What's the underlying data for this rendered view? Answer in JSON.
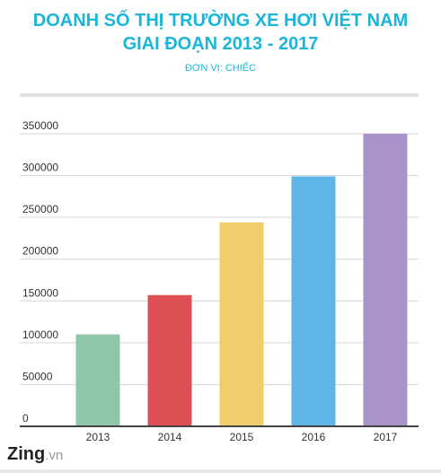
{
  "header": {
    "title_line1": "DOANH SỐ THỊ TRƯỜNG XE HƠI VIỆT NAM",
    "title_line2": "GIAI ĐOẠN 2013 - 2017",
    "unit": "ĐƠN VỊ: CHIẾC"
  },
  "logo": {
    "main": "Zing",
    "suffix": ".vn"
  },
  "colors": {
    "title": "#1ab6d9",
    "bars": [
      "#8fc5a8",
      "#dc5055",
      "#f0cd6c",
      "#5fb5e6",
      "#a892c7"
    ]
  },
  "chart_data": {
    "type": "bar",
    "title": "DOANH SỐ THỊ TRƯỜNG XE HƠI VIỆT NAM GIAI ĐOẠN 2013 - 2017",
    "subtitle": "ĐƠN VỊ: CHIẾC",
    "categories": [
      "2013",
      "2014",
      "2015",
      "2016",
      "2017"
    ],
    "values": [
      110000,
      157000,
      244000,
      299000,
      350000
    ],
    "ylim": [
      0,
      350000
    ],
    "yticks": [
      0,
      50000,
      100000,
      150000,
      200000,
      250000,
      300000,
      350000
    ],
    "ytick_labels": [
      "0",
      "50000",
      "100000",
      "150000",
      "200000",
      "250000",
      "300000",
      "350000"
    ],
    "grid": true,
    "xlabel": "",
    "ylabel": ""
  }
}
